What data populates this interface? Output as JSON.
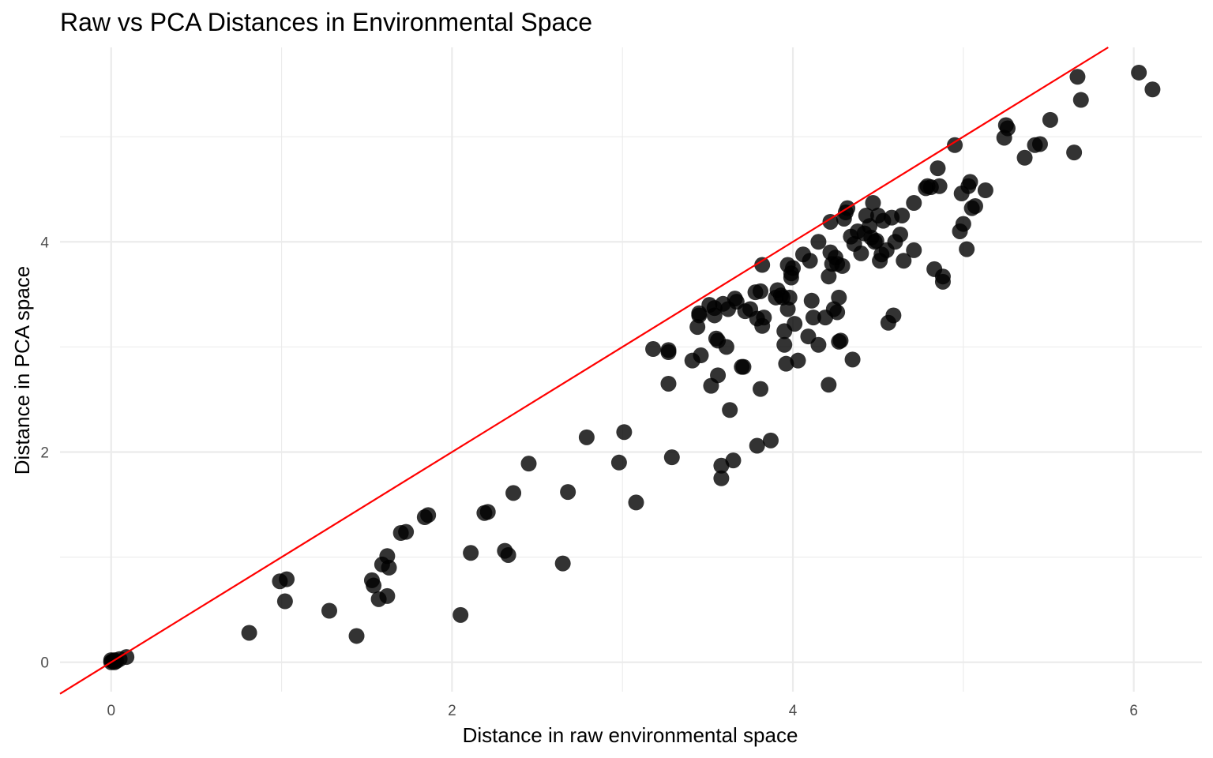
{
  "chart_data": {
    "type": "scatter",
    "title": "Raw vs PCA Distances in Environmental Space",
    "xlabel": "Distance in raw environmental space",
    "ylabel": "Distance in PCA space",
    "xlim": [
      -0.3,
      6.4
    ],
    "ylim": [
      -0.28,
      5.85
    ],
    "x_ticks": [
      0,
      2,
      4,
      6
    ],
    "y_ticks": [
      0,
      2,
      4
    ],
    "x_tick_labels": [
      "0",
      "2",
      "4",
      "6"
    ],
    "y_tick_labels": [
      "0",
      "2",
      "4"
    ],
    "grid": true,
    "reference_line": {
      "slope": 1,
      "intercept": 0,
      "color": "#ff0000"
    },
    "point_color": "#000000",
    "points": [
      [
        0.0,
        0.0
      ],
      [
        0.01,
        0.01
      ],
      [
        0.02,
        0.0
      ],
      [
        0.0,
        0.02
      ],
      [
        0.03,
        0.01
      ],
      [
        0.05,
        0.03
      ],
      [
        0.09,
        0.05
      ],
      [
        0.02,
        0.02
      ],
      [
        0.81,
        0.28
      ],
      [
        0.99,
        0.77
      ],
      [
        1.03,
        0.79
      ],
      [
        1.02,
        0.58
      ],
      [
        1.28,
        0.49
      ],
      [
        1.44,
        0.25
      ],
      [
        1.53,
        0.78
      ],
      [
        1.54,
        0.73
      ],
      [
        1.57,
        0.6
      ],
      [
        1.59,
        0.93
      ],
      [
        1.62,
        1.01
      ],
      [
        1.63,
        0.9
      ],
      [
        1.62,
        0.63
      ],
      [
        1.7,
        1.23
      ],
      [
        1.73,
        1.24
      ],
      [
        1.84,
        1.38
      ],
      [
        1.86,
        1.4
      ],
      [
        2.05,
        0.45
      ],
      [
        2.11,
        1.04
      ],
      [
        2.19,
        1.42
      ],
      [
        2.21,
        1.43
      ],
      [
        2.31,
        1.06
      ],
      [
        2.33,
        1.02
      ],
      [
        2.36,
        1.61
      ],
      [
        2.45,
        1.89
      ],
      [
        2.65,
        0.94
      ],
      [
        2.68,
        1.62
      ],
      [
        2.79,
        2.14
      ],
      [
        2.98,
        1.9
      ],
      [
        3.01,
        2.19
      ],
      [
        3.08,
        1.52
      ],
      [
        3.18,
        2.98
      ],
      [
        3.27,
        2.97
      ],
      [
        3.27,
        2.95
      ],
      [
        3.27,
        2.65
      ],
      [
        3.29,
        1.95
      ],
      [
        3.41,
        2.87
      ],
      [
        3.45,
        3.3
      ],
      [
        3.45,
        3.32
      ],
      [
        3.46,
        2.92
      ],
      [
        3.44,
        3.19
      ],
      [
        3.51,
        3.4
      ],
      [
        3.52,
        2.63
      ],
      [
        3.54,
        3.37
      ],
      [
        3.54,
        3.3
      ],
      [
        3.55,
        3.08
      ],
      [
        3.56,
        3.06
      ],
      [
        3.56,
        2.73
      ],
      [
        3.58,
        1.87
      ],
      [
        3.58,
        1.75
      ],
      [
        3.59,
        3.41
      ],
      [
        3.61,
        3.0
      ],
      [
        3.62,
        3.36
      ],
      [
        3.63,
        2.4
      ],
      [
        3.65,
        1.92
      ],
      [
        3.66,
        3.46
      ],
      [
        3.67,
        3.43
      ],
      [
        3.7,
        2.81
      ],
      [
        3.71,
        2.81
      ],
      [
        3.72,
        3.34
      ],
      [
        3.75,
        3.36
      ],
      [
        3.78,
        3.52
      ],
      [
        3.79,
        3.27
      ],
      [
        3.79,
        2.06
      ],
      [
        3.81,
        3.53
      ],
      [
        3.82,
        3.78
      ],
      [
        3.82,
        3.2
      ],
      [
        3.83,
        3.28
      ],
      [
        3.81,
        2.6
      ],
      [
        3.87,
        2.11
      ],
      [
        3.9,
        3.47
      ],
      [
        3.91,
        3.54
      ],
      [
        3.93,
        3.49
      ],
      [
        3.94,
        3.47
      ],
      [
        3.95,
        3.15
      ],
      [
        3.95,
        3.02
      ],
      [
        3.97,
        3.36
      ],
      [
        3.96,
        2.84
      ],
      [
        3.97,
        3.78
      ],
      [
        3.98,
        3.47
      ],
      [
        3.99,
        3.66
      ],
      [
        3.99,
        3.7
      ],
      [
        4.0,
        3.75
      ],
      [
        4.01,
        3.22
      ],
      [
        4.03,
        2.87
      ],
      [
        4.06,
        3.88
      ],
      [
        4.09,
        3.1
      ],
      [
        4.1,
        3.82
      ],
      [
        4.11,
        3.44
      ],
      [
        4.12,
        3.28
      ],
      [
        4.15,
        4.0
      ],
      [
        4.15,
        3.02
      ],
      [
        4.19,
        3.28
      ],
      [
        4.21,
        3.67
      ],
      [
        4.21,
        2.64
      ],
      [
        4.22,
        3.9
      ],
      [
        4.22,
        4.19
      ],
      [
        4.23,
        3.79
      ],
      [
        4.24,
        3.36
      ],
      [
        4.25,
        3.85
      ],
      [
        4.26,
        3.33
      ],
      [
        4.26,
        3.79
      ],
      [
        4.27,
        3.47
      ],
      [
        4.27,
        3.05
      ],
      [
        4.28,
        3.06
      ],
      [
        4.29,
        3.77
      ],
      [
        4.3,
        4.22
      ],
      [
        4.31,
        4.28
      ],
      [
        4.32,
        4.32
      ],
      [
        4.34,
        4.05
      ],
      [
        4.35,
        2.88
      ],
      [
        4.36,
        3.98
      ],
      [
        4.38,
        4.1
      ],
      [
        4.4,
        3.89
      ],
      [
        4.42,
        4.08
      ],
      [
        4.43,
        4.25
      ],
      [
        4.45,
        4.15
      ],
      [
        4.46,
        4.04
      ],
      [
        4.47,
        4.37
      ],
      [
        4.48,
        4.0
      ],
      [
        4.49,
        4.01
      ],
      [
        4.5,
        4.25
      ],
      [
        4.51,
        3.82
      ],
      [
        4.52,
        3.88
      ],
      [
        4.53,
        4.2
      ],
      [
        4.55,
        3.92
      ],
      [
        4.56,
        3.23
      ],
      [
        4.58,
        4.23
      ],
      [
        4.59,
        3.3
      ],
      [
        4.6,
        4.0
      ],
      [
        4.63,
        4.07
      ],
      [
        4.64,
        4.25
      ],
      [
        4.65,
        3.82
      ],
      [
        4.71,
        3.92
      ],
      [
        4.71,
        4.37
      ],
      [
        4.78,
        4.51
      ],
      [
        4.79,
        4.53
      ],
      [
        4.81,
        4.52
      ],
      [
        4.83,
        3.74
      ],
      [
        4.85,
        4.7
      ],
      [
        4.86,
        4.53
      ],
      [
        4.88,
        3.67
      ],
      [
        4.88,
        3.62
      ],
      [
        4.95,
        4.92
      ],
      [
        4.98,
        4.1
      ],
      [
        4.99,
        4.46
      ],
      [
        5.0,
        4.17
      ],
      [
        5.02,
        3.93
      ],
      [
        5.03,
        4.53
      ],
      [
        5.04,
        4.57
      ],
      [
        5.05,
        4.32
      ],
      [
        5.07,
        4.34
      ],
      [
        5.13,
        4.49
      ],
      [
        5.24,
        4.99
      ],
      [
        5.25,
        5.11
      ],
      [
        5.26,
        5.08
      ],
      [
        5.36,
        4.8
      ],
      [
        5.42,
        4.92
      ],
      [
        5.45,
        4.93
      ],
      [
        5.51,
        5.16
      ],
      [
        5.65,
        4.85
      ],
      [
        5.67,
        5.57
      ],
      [
        5.69,
        5.35
      ],
      [
        6.03,
        5.61
      ],
      [
        6.11,
        5.45
      ]
    ]
  }
}
